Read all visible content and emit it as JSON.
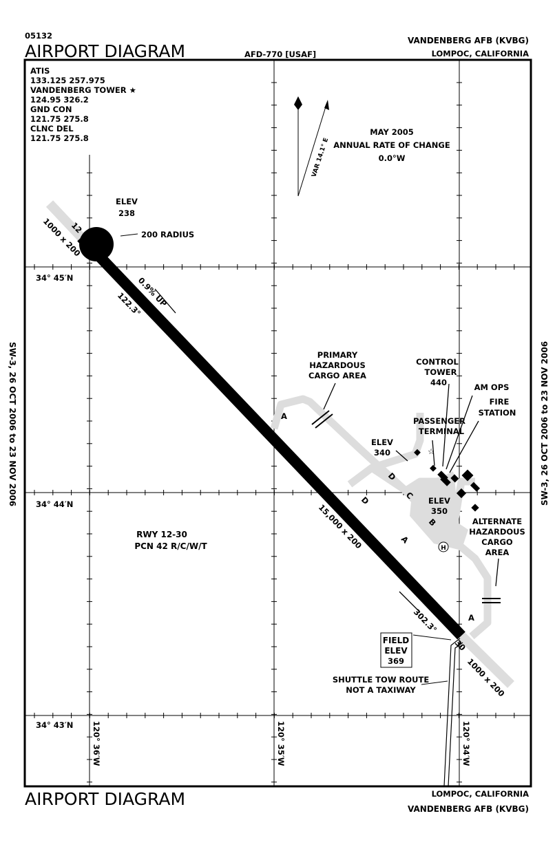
{
  "header": {
    "chart_number": "05132",
    "title": "AIRPORT DIAGRAM",
    "procedure": "AFD-770 [USAF]",
    "airport": "VANDENBERG AFB  (KVBG)",
    "city": "LOMPOC, CALIFORNIA"
  },
  "footer": {
    "title": "AIRPORT DIAGRAM",
    "city": "LOMPOC, CALIFORNIA",
    "airport": "VANDENBERG AFB  (KVBG)"
  },
  "side_validity": "SW-3, 26 OCT 2006 to 23 NOV 2006",
  "frequencies": [
    "ATIS",
    "133.125  257.975",
    "VANDENBERG TOWER ★",
    "124.95  326.2",
    "GND CON",
    "121.75  275.8",
    "CLNC DEL",
    "121.75  275.8"
  ],
  "magnetic": {
    "date": "MAY 2005",
    "rate_label": "ANNUAL RATE OF CHANGE",
    "rate": "0.0°W",
    "variation": "VAR 14.1° E"
  },
  "latitudes": [
    "34° 45′N",
    "34° 44′N",
    "34° 43′N"
  ],
  "longitudes": [
    "120° 36′W",
    "120° 35′W",
    "120° 34′W"
  ],
  "runway": {
    "end_12": "12",
    "end_30": "30",
    "overrun_12": "1000 x 200",
    "overrun_30": "1000 x 200",
    "dimensions": "15,000 x 200",
    "heading_12": "122.3°",
    "heading_30": "302.3°",
    "gradient": "0.9% UP",
    "designation": "RWY 12-30",
    "pcn": "PCN 42 R/C/W/T"
  },
  "labels": {
    "elev_238": [
      "ELEV",
      "238"
    ],
    "radius": "200 RADIUS",
    "primary_cargo": [
      "PRIMARY",
      "HAZARDOUS",
      "CARGO AREA"
    ],
    "control_tower": [
      "CONTROL",
      "TOWER",
      "440"
    ],
    "am_ops": "AM OPS",
    "fire_station": [
      "FIRE",
      "STATION"
    ],
    "passenger_terminal": [
      "PASSENGER",
      "TERMINAL"
    ],
    "elev_340": [
      "ELEV",
      "340"
    ],
    "elev_350": [
      "ELEV",
      "350"
    ],
    "alt_cargo": [
      "ALTERNATE",
      "HAZARDOUS",
      "CARGO",
      "AREA"
    ],
    "field_elev": [
      "FIELD",
      "ELEV",
      "369"
    ],
    "shuttle": [
      "SHUTTLE TOW ROUTE",
      "NOT A TAXIWAY"
    ],
    "heliport": "H"
  },
  "taxiways": {
    "a": "A",
    "b": "B",
    "c": "C",
    "d": "D"
  }
}
